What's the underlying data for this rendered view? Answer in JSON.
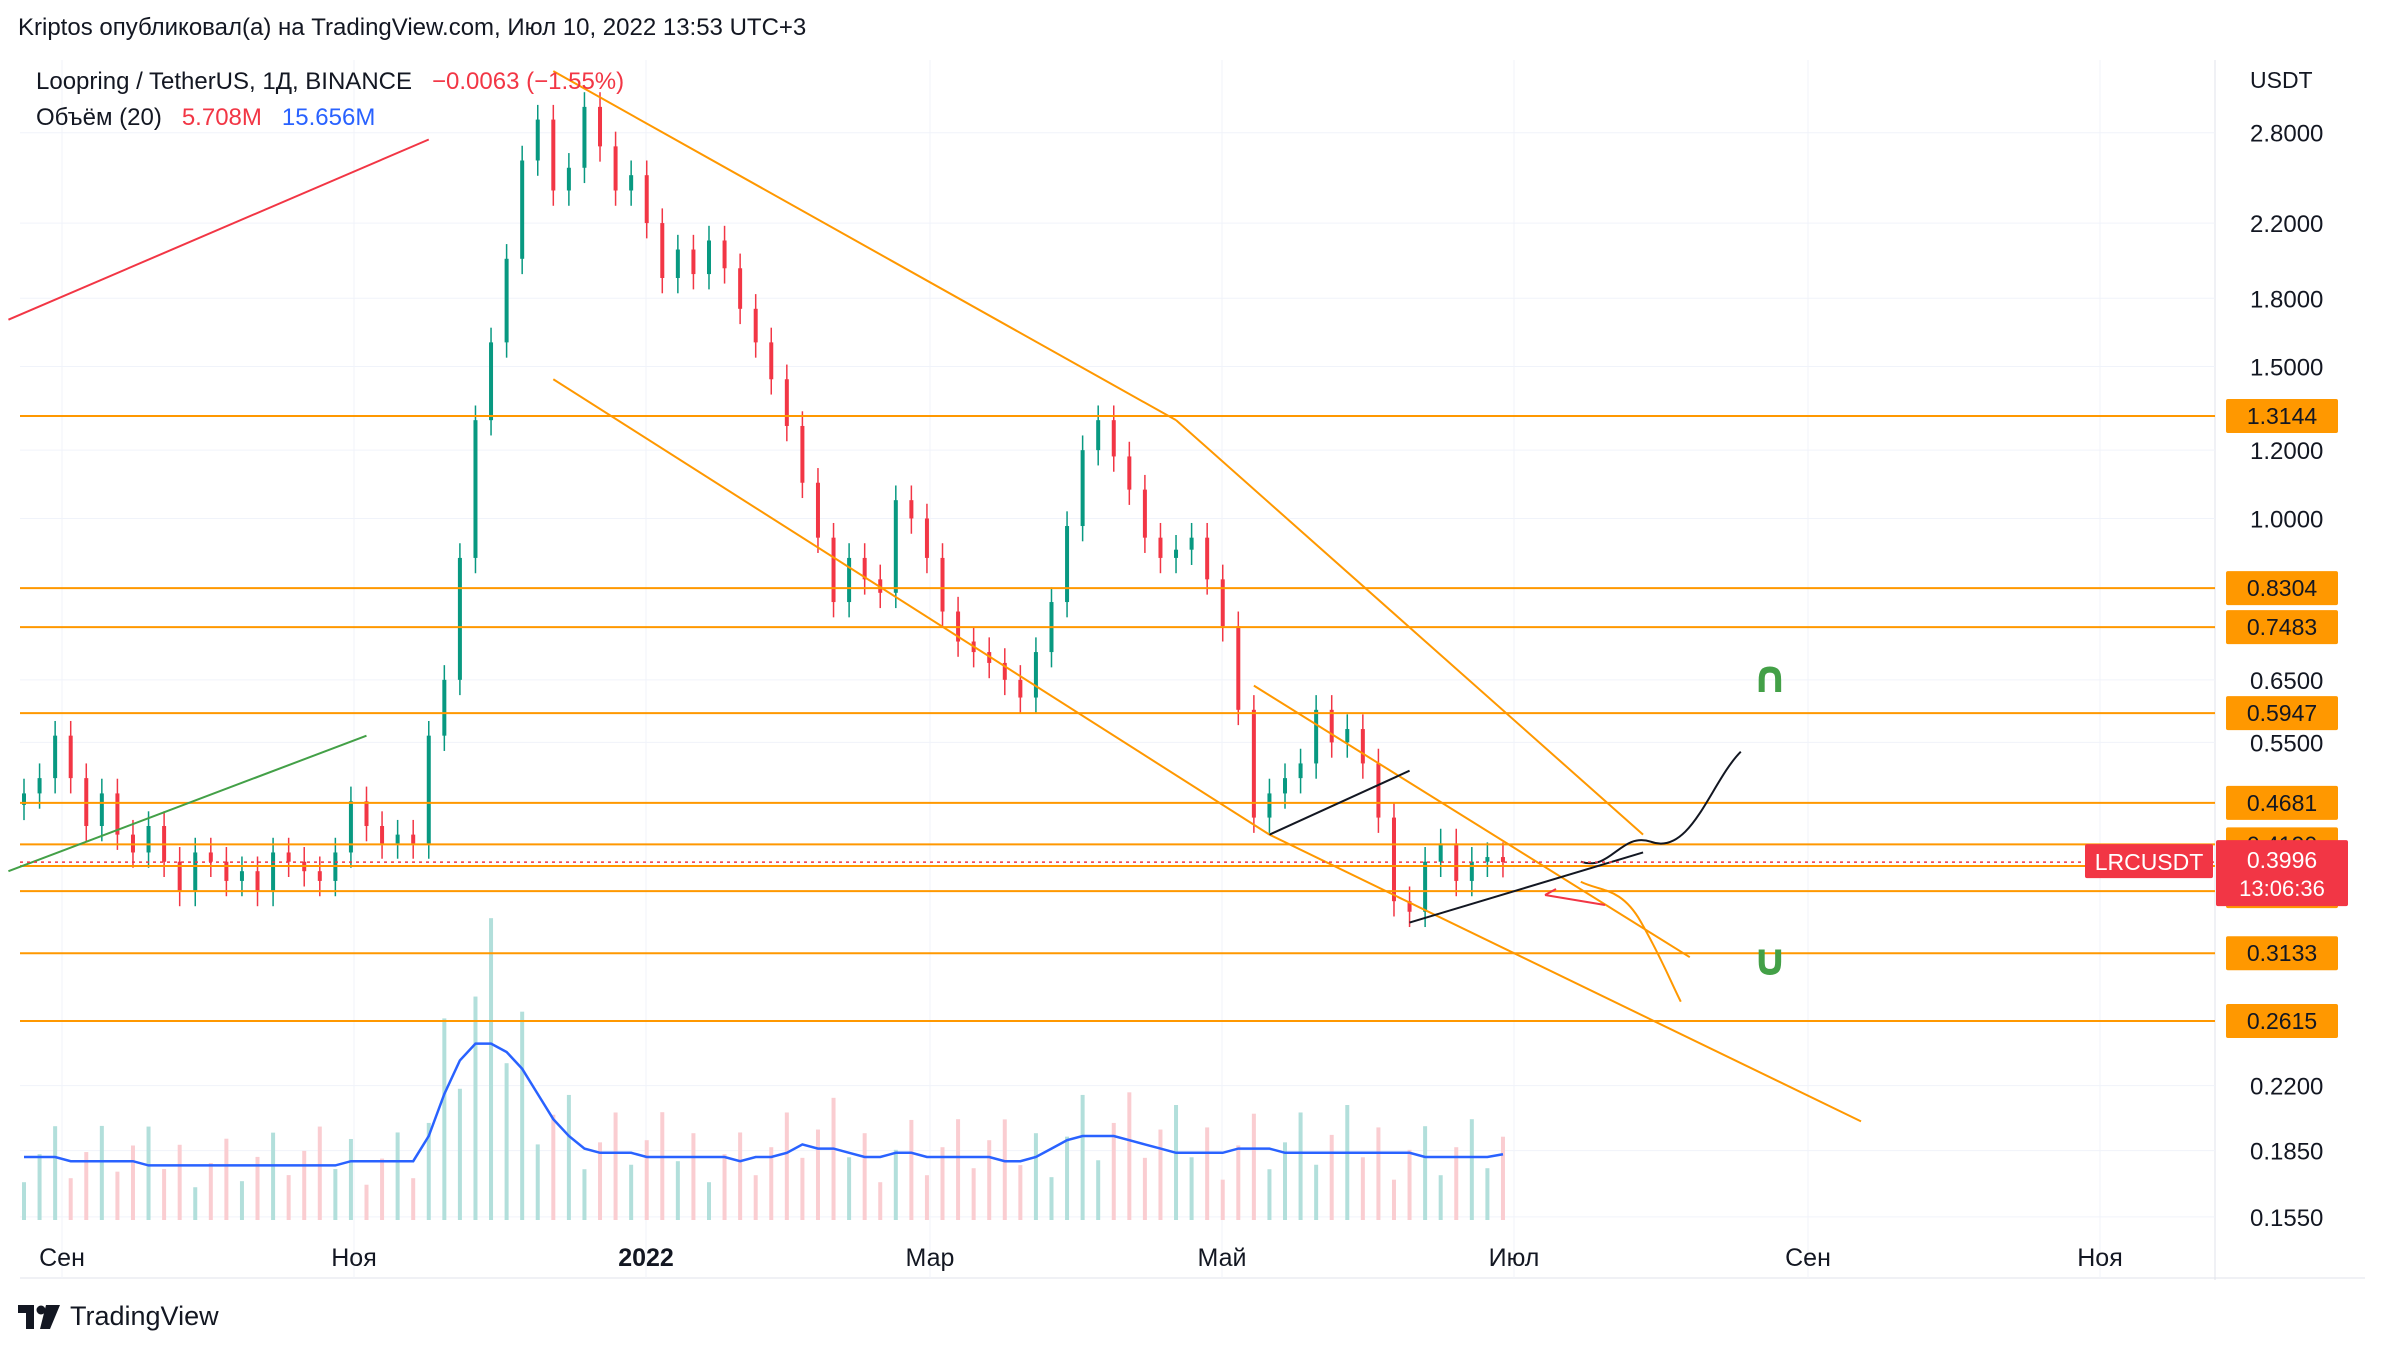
{
  "header": {
    "text": "Kriptos опубликовал(а) на TradingView.com, Июл 10, 2022 13:53 UTC+3"
  },
  "legend": {
    "symbol": "Loopring / TetherUS, 1Д, BINANCE",
    "change": "−0.0063 (−1.55%)",
    "volume_label": "Объём (20)",
    "volume_value": "5.708M",
    "volume_ma": "15.656M"
  },
  "brand": {
    "name": "TradingView"
  },
  "colors": {
    "level": "#ff9800",
    "up": "#089981",
    "down": "#f23645",
    "volume_ma": "#2962ff",
    "trend_green": "#43a047",
    "trend_red": "#f23645"
  },
  "chart_data": {
    "type": "candlestick",
    "title": "Loopring / TetherUS, 1Д, BINANCE",
    "currency": "USDT",
    "scale": "log",
    "ylim": [
      0.14,
      3.4
    ],
    "y_ticks": [
      "2.8000",
      "2.2000",
      "1.8000",
      "1.5000",
      "1.2000",
      "1.0000",
      "0.6500",
      "0.5500",
      "0.2200",
      "0.1850",
      "0.1550"
    ],
    "x_ticks": [
      "Сен",
      "Ноя",
      "2022",
      "Мар",
      "Май",
      "Июл",
      "Сен",
      "Ноя"
    ],
    "levels": [
      "1.3144",
      "0.8304",
      "0.7483",
      "0.5947",
      "0.4681",
      "0.4190",
      "0.3954",
      "0.3698",
      "0.3133",
      "0.2615"
    ],
    "current": {
      "symbol": "LRCUSDT",
      "price": "0.3996",
      "countdown": "13:06:36"
    },
    "closes": [
      0.48,
      0.5,
      0.56,
      0.5,
      0.44,
      0.48,
      0.43,
      0.41,
      0.44,
      0.4,
      0.37,
      0.41,
      0.4,
      0.38,
      0.39,
      0.37,
      0.41,
      0.4,
      0.39,
      0.38,
      0.41,
      0.47,
      0.44,
      0.42,
      0.43,
      0.42,
      0.56,
      0.65,
      0.9,
      1.3,
      1.6,
      2.0,
      2.6,
      2.9,
      2.4,
      2.55,
      3.0,
      2.7,
      2.4,
      2.5,
      2.2,
      1.9,
      2.05,
      1.92,
      2.1,
      1.95,
      1.75,
      1.6,
      1.45,
      1.28,
      1.1,
      0.95,
      0.8,
      0.9,
      0.85,
      0.82,
      1.05,
      1.0,
      0.9,
      0.78,
      0.72,
      0.7,
      0.68,
      0.65,
      0.62,
      0.7,
      0.8,
      0.98,
      1.2,
      1.3,
      1.18,
      1.08,
      0.95,
      0.9,
      0.92,
      0.95,
      0.85,
      0.75,
      0.6,
      0.45,
      0.48,
      0.5,
      0.52,
      0.6,
      0.55,
      0.57,
      0.52,
      0.45,
      0.36,
      0.35,
      0.4,
      0.42,
      0.38,
      0.4,
      0.405,
      0.3996
    ],
    "volume_ma_m": [
      15,
      15,
      15,
      14,
      14,
      14,
      14,
      14,
      13,
      13,
      13,
      13,
      13,
      13,
      13,
      13,
      13,
      13,
      13,
      13,
      13,
      14,
      14,
      14,
      14,
      14,
      20,
      30,
      38,
      42,
      42,
      40,
      36,
      30,
      24,
      20,
      17,
      16,
      16,
      16,
      15,
      15,
      15,
      15,
      15,
      15,
      14,
      15,
      15,
      16,
      18,
      17,
      17,
      16,
      15,
      15,
      16,
      16,
      15,
      15,
      15,
      15,
      15,
      14,
      14,
      15,
      17,
      19,
      20,
      20,
      20,
      19,
      18,
      17,
      16,
      16,
      16,
      16,
      17,
      17,
      17,
      16,
      16,
      16,
      16,
      16,
      16,
      16,
      16,
      16,
      15,
      15,
      15,
      15,
      15,
      15.656
    ],
    "annotations": [
      "up-arrow-scenario",
      "down-arrow-scenario"
    ]
  }
}
